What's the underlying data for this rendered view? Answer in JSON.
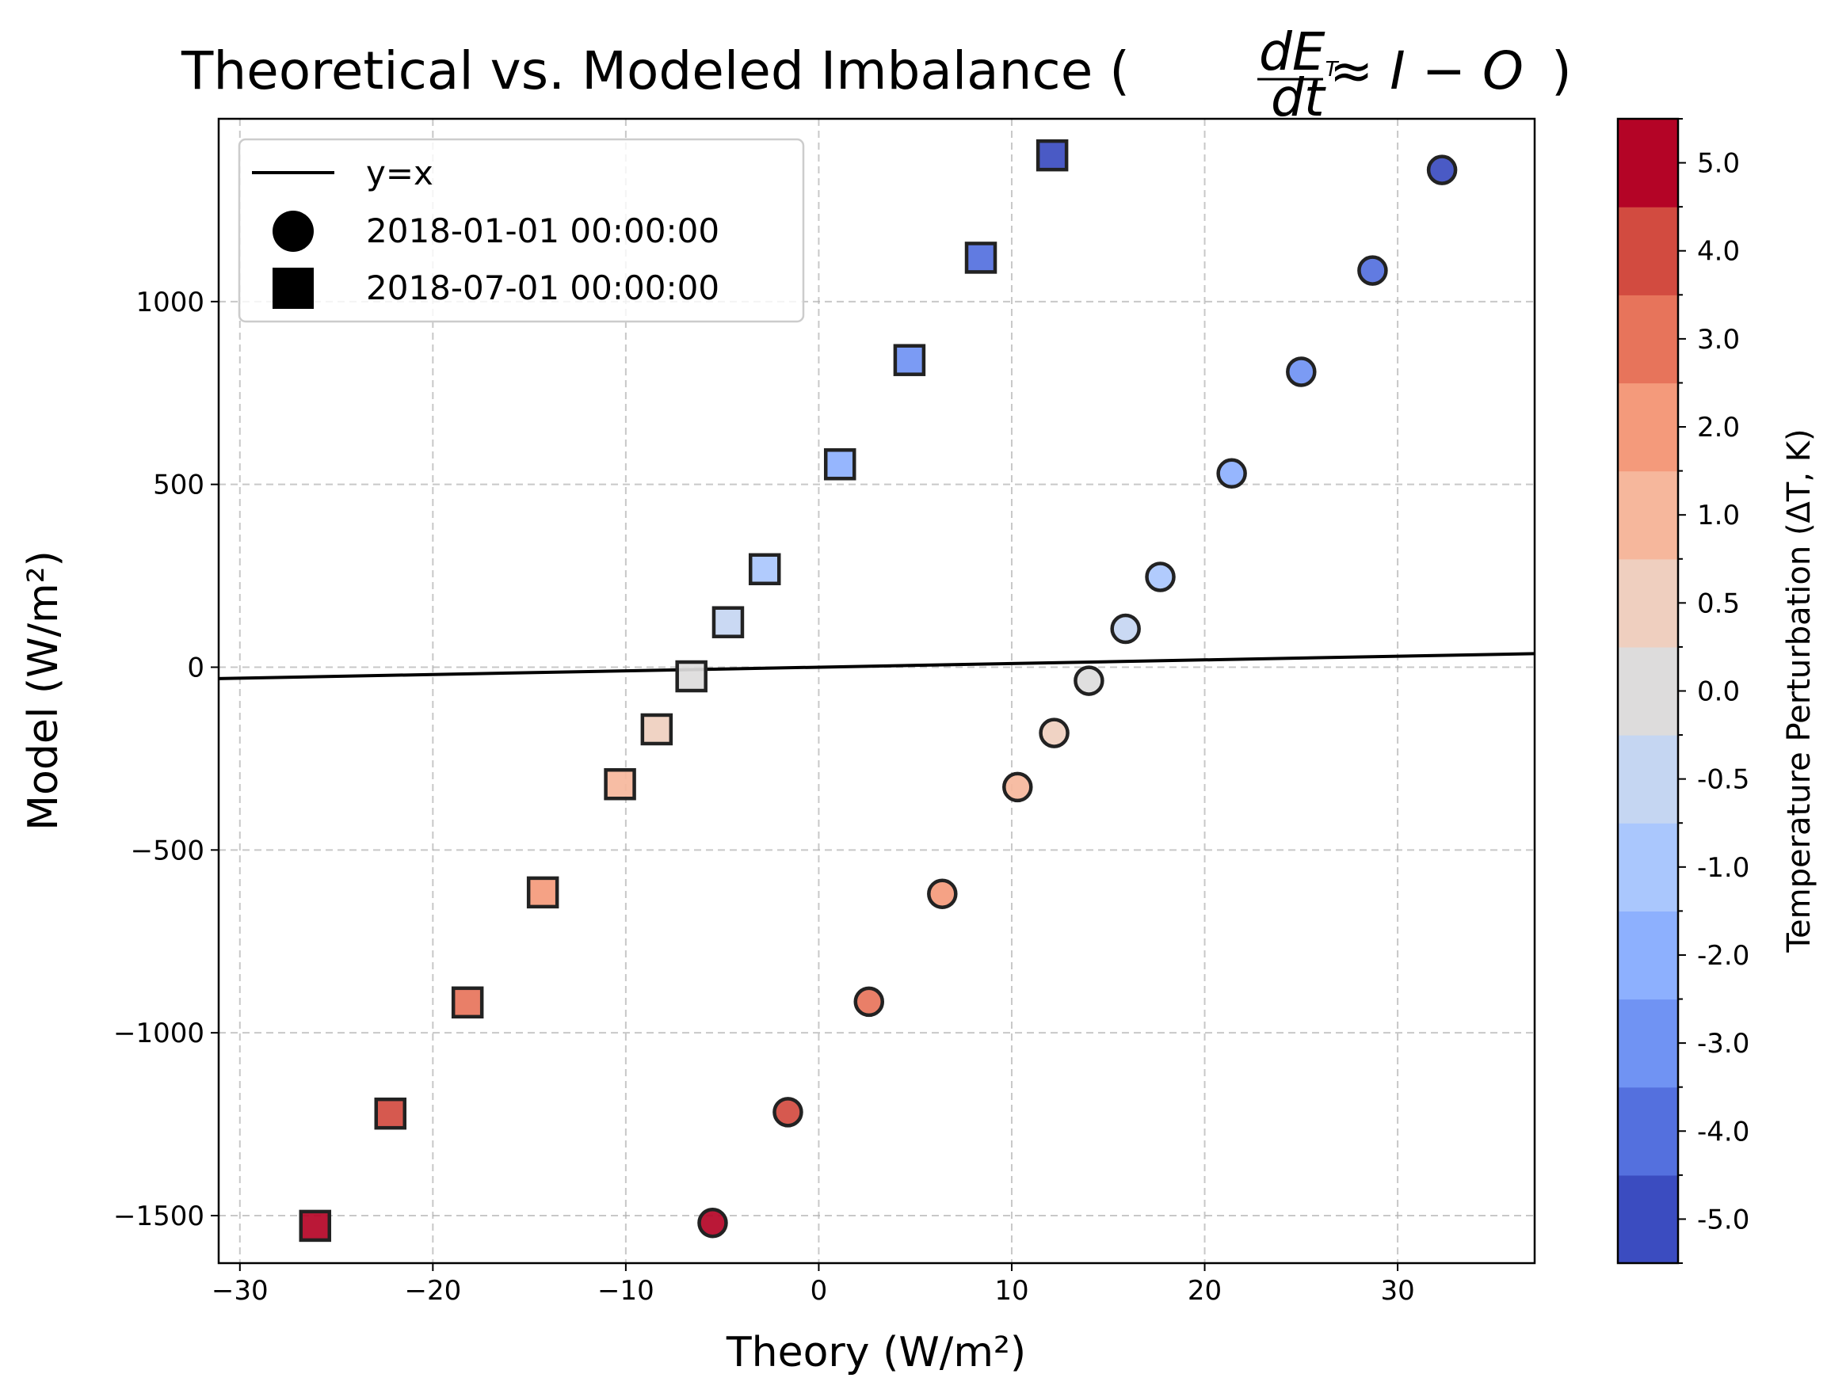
{
  "chart_data": {
    "type": "scatter",
    "title": "Theoretical vs. Modeled Imbalance (",
    "title_math": {
      "frac_num": "dE",
      "frac_num_sub": "T",
      "frac_den": "dt",
      "rest": " ≈ I − O",
      "close": ")"
    },
    "xlabel": "Theory (W/m²)",
    "ylabel": "Model (W/m²)",
    "xlim": [
      -31.1,
      37.1
    ],
    "ylim": [
      -1630,
      1500
    ],
    "xticks": [
      -30,
      -20,
      -10,
      0,
      10,
      20,
      30
    ],
    "xtick_labels": [
      "−30",
      "−20",
      "−10",
      "0",
      "10",
      "20",
      "30"
    ],
    "yticks": [
      -1500,
      -1000,
      -500,
      0,
      500,
      1000
    ],
    "ytick_labels": [
      "−1500",
      "−1000",
      "−500",
      "0",
      "500",
      "1000"
    ],
    "grid": true,
    "legend_position": "top-left",
    "legend": [
      {
        "label": "y=x",
        "marker": "line"
      },
      {
        "label": "2018-01-01 00:00:00",
        "marker": "circle"
      },
      {
        "label": "2018-07-01 00:00:00",
        "marker": "square"
      }
    ],
    "reference_line": {
      "label": "y=x",
      "slope": 1,
      "color": "#000000"
    },
    "series": [
      {
        "name": "2018-01-01 00:00:00",
        "marker": "circle",
        "points": [
          {
            "x": -5.5,
            "y": -1520,
            "c": 5.0
          },
          {
            "x": -1.6,
            "y": -1217,
            "c": 4.0
          },
          {
            "x": 2.6,
            "y": -915,
            "c": 3.0
          },
          {
            "x": 6.4,
            "y": -620,
            "c": 2.0
          },
          {
            "x": 10.3,
            "y": -328,
            "c": 1.0
          },
          {
            "x": 12.2,
            "y": -180,
            "c": 0.5
          },
          {
            "x": 14.0,
            "y": -37,
            "c": 0.0
          },
          {
            "x": 15.9,
            "y": 105,
            "c": -0.5
          },
          {
            "x": 17.7,
            "y": 247,
            "c": -1.0
          },
          {
            "x": 21.4,
            "y": 530,
            "c": -2.0
          },
          {
            "x": 25.0,
            "y": 808,
            "c": -3.0
          },
          {
            "x": 28.7,
            "y": 1085,
            "c": -4.0
          },
          {
            "x": 32.3,
            "y": 1360,
            "c": -5.0
          }
        ]
      },
      {
        "name": "2018-07-01 00:00:00",
        "marker": "square",
        "points": [
          {
            "x": -26.1,
            "y": -1528,
            "c": 5.0
          },
          {
            "x": -22.2,
            "y": -1221,
            "c": 4.0
          },
          {
            "x": -18.2,
            "y": -917,
            "c": 3.0
          },
          {
            "x": -14.3,
            "y": -616,
            "c": 2.0
          },
          {
            "x": -10.3,
            "y": -320,
            "c": 1.0
          },
          {
            "x": -8.4,
            "y": -170,
            "c": 0.5
          },
          {
            "x": -6.6,
            "y": -25,
            "c": 0.0
          },
          {
            "x": -4.7,
            "y": 123,
            "c": -0.5
          },
          {
            "x": -2.8,
            "y": 268,
            "c": -1.0
          },
          {
            "x": 1.1,
            "y": 555,
            "c": -2.0
          },
          {
            "x": 4.7,
            "y": 840,
            "c": -3.0
          },
          {
            "x": 8.4,
            "y": 1120,
            "c": -4.0
          },
          {
            "x": 12.1,
            "y": 1400,
            "c": -5.0
          }
        ]
      }
    ],
    "colorbar": {
      "label": "Temperature Perturbation (ΔT, K)",
      "ticks": [
        "-5.0",
        "-4.0",
        "-3.0",
        "-2.0",
        "-1.0",
        "-0.5",
        "0.0",
        "0.5",
        "1.0",
        "2.0",
        "3.0",
        "4.0",
        "5.0"
      ],
      "bins": [
        -5.0,
        -4.0,
        -3.0,
        -2.0,
        -1.0,
        -0.5,
        0.0,
        0.5,
        1.0,
        2.0,
        3.0,
        4.0,
        5.0
      ],
      "colors": [
        "#3b4cc0",
        "#5470de",
        "#7093f3",
        "#8db0fe",
        "#aac7fd",
        "#c5d6f2",
        "#dddcdc",
        "#efcfbf",
        "#f6b79c",
        "#f49a7b",
        "#e7745b",
        "#d24b40",
        "#b40426"
      ]
    }
  }
}
